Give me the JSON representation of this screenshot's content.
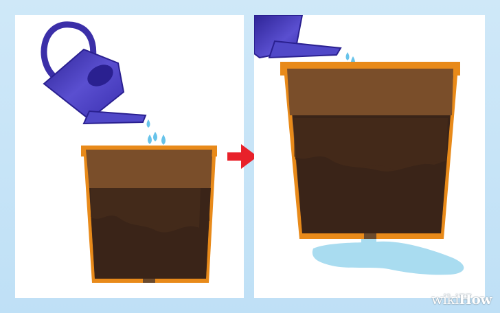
{
  "illustration": {
    "colors": {
      "background": "#c8e4f6",
      "pot_rim": "#e88a1a",
      "soil_dry": "#7a4e2a",
      "soil_wet": "#3a2418",
      "water": "#7fd0ee",
      "watering_can": "#4b3fc0",
      "arrow": "#e8212a"
    }
  },
  "watermark": {
    "part1": "wiki",
    "part2": "How"
  }
}
